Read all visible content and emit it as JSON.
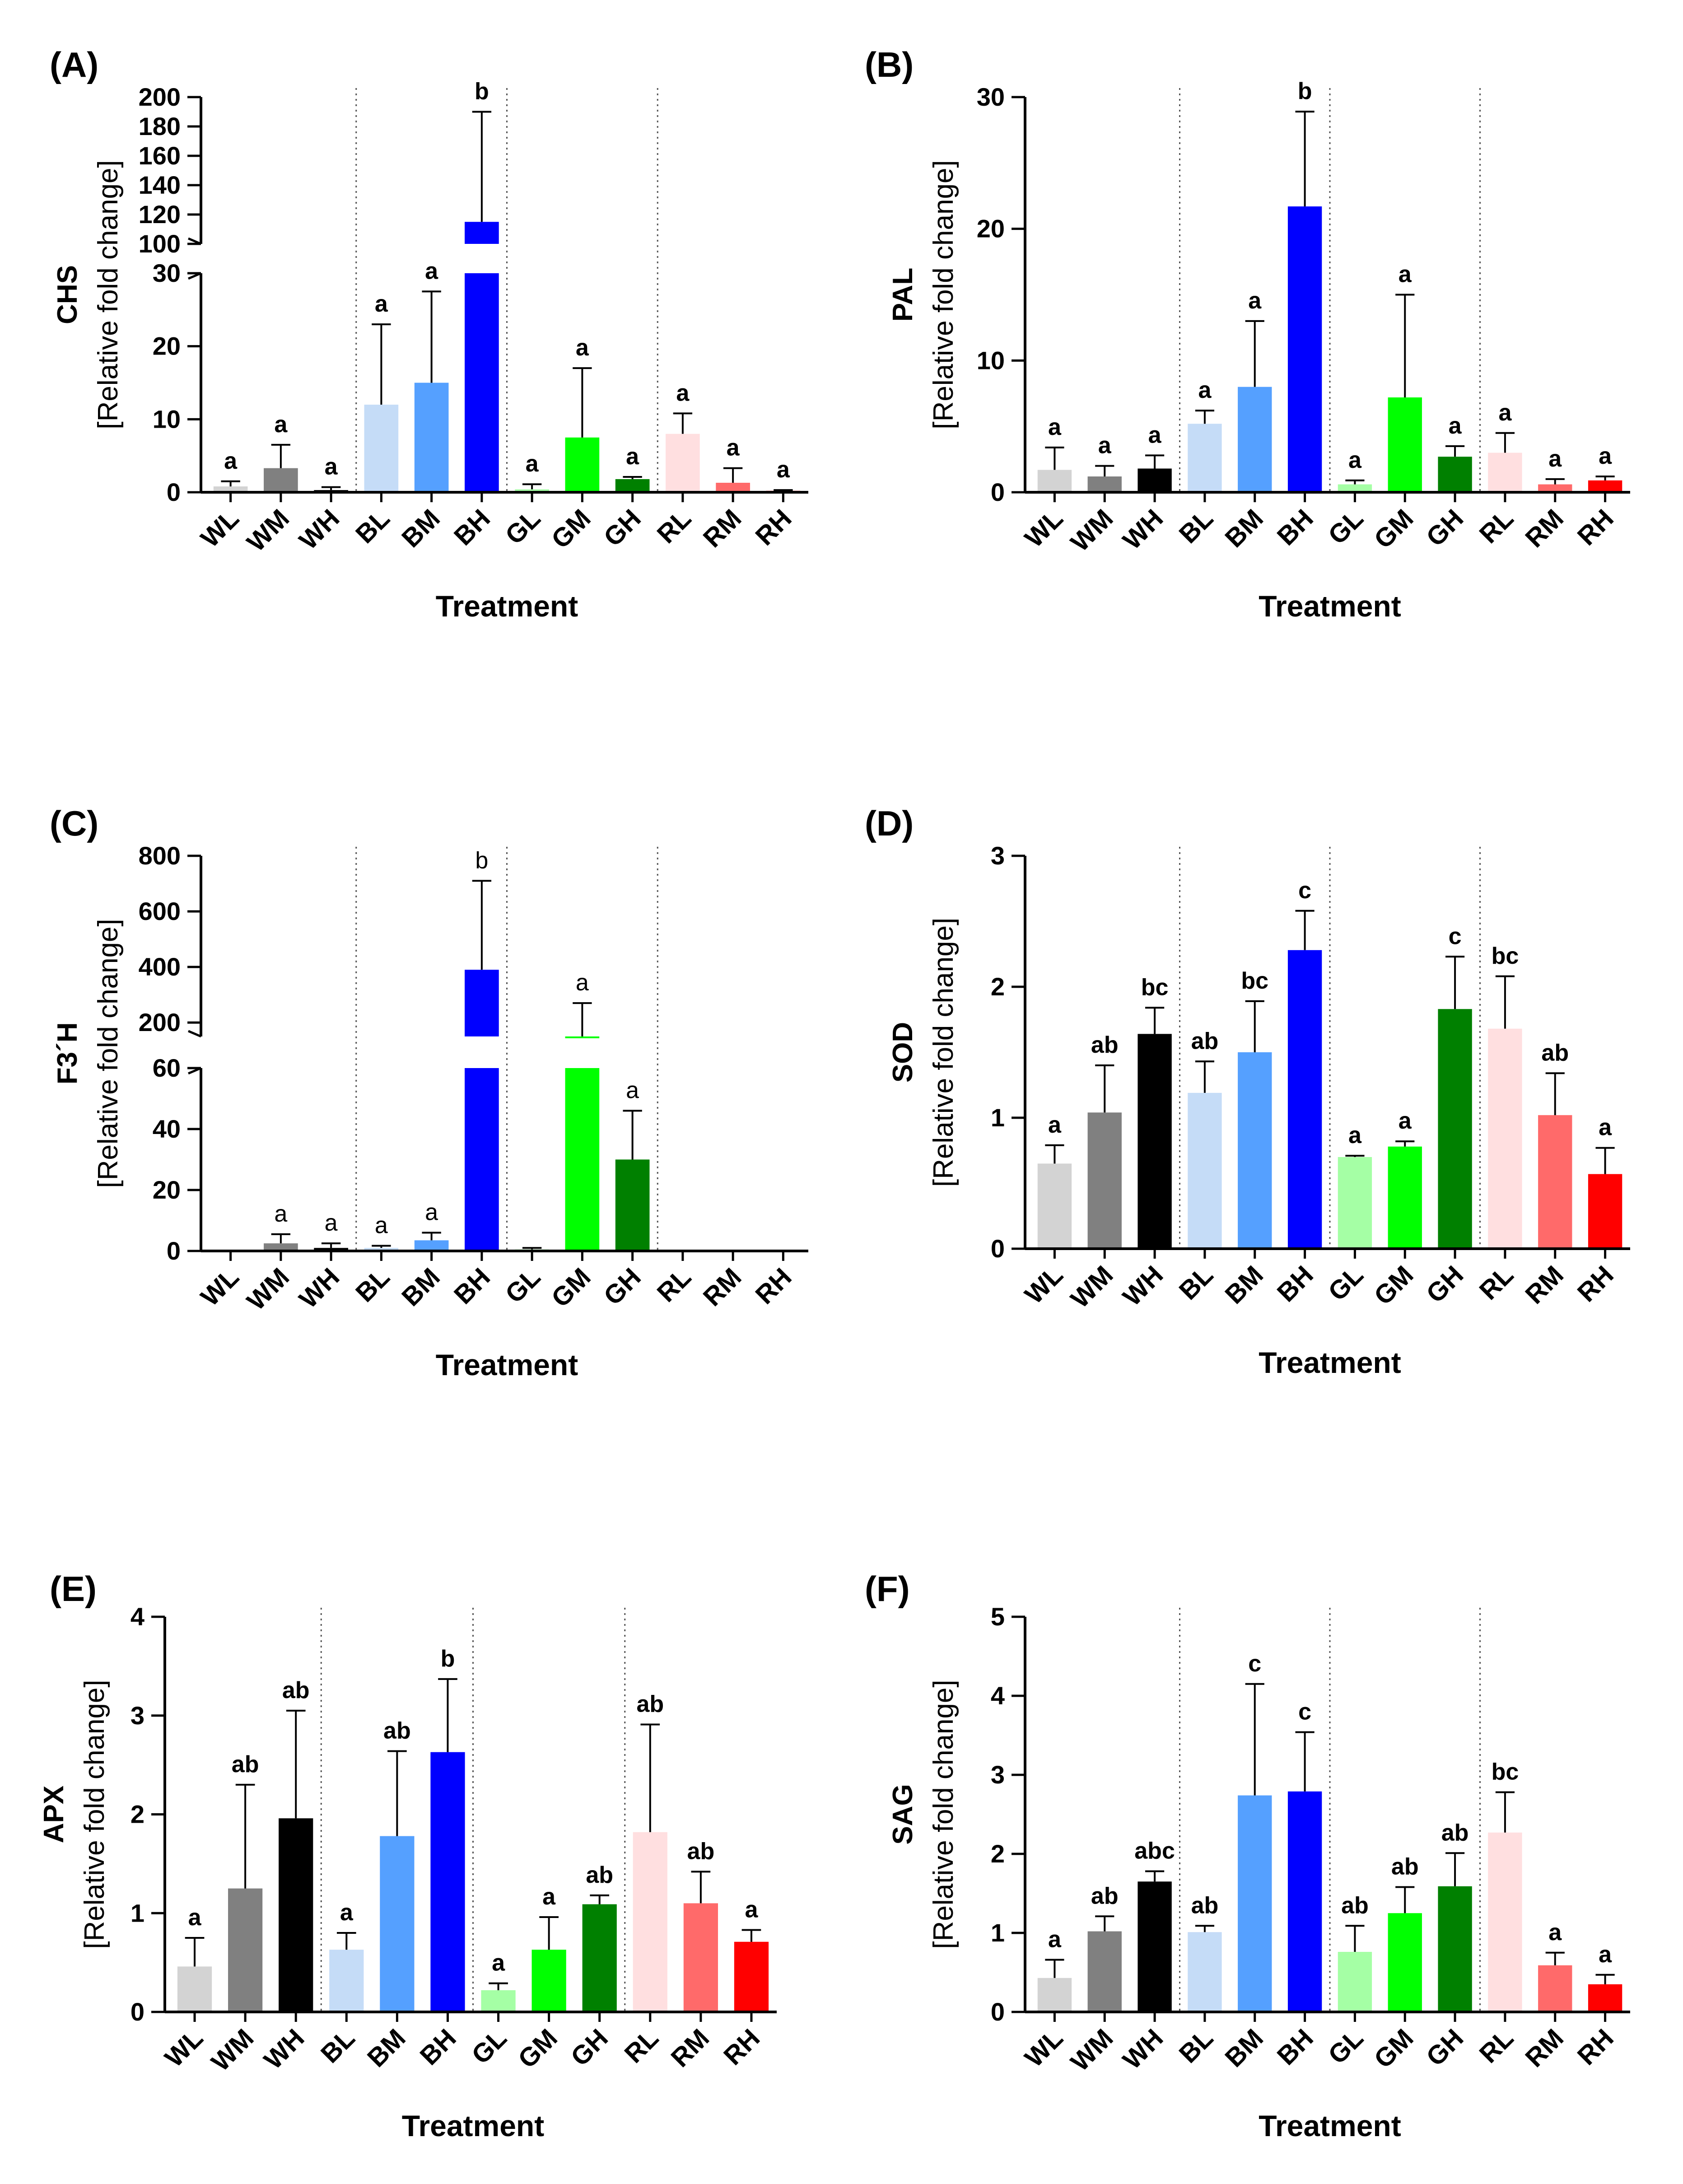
{
  "chart_data": [
    {
      "panel": "(A)",
      "type": "bar",
      "gene": "CHS",
      "unit": "[Relative fold change]",
      "xlabel": "Treatment",
      "categories": [
        "WL",
        "WM",
        "WH",
        "BL",
        "BM",
        "BH",
        "GL",
        "GM",
        "GH",
        "RL",
        "RM",
        "RH"
      ],
      "colors": [
        "#d3d3d3",
        "#808080",
        "#000000",
        "#c5dcf7",
        "#55a0ff",
        "#0000ff",
        "#a5ffa5",
        "#00ff00",
        "#008000",
        "#ffdfe0",
        "#ff6a6a",
        "#ff0000"
      ],
      "values": [
        0.8,
        3.3,
        0.3,
        12,
        15,
        115,
        0.4,
        7.5,
        1.8,
        8,
        1.3,
        0.2
      ],
      "errors": [
        0.7,
        3.2,
        0.4,
        11,
        12.5,
        75,
        0.7,
        9.5,
        0.3,
        2.8,
        2,
        0.1
      ],
      "letters": [
        "a",
        "a",
        "a",
        "a",
        "a",
        "b",
        "a",
        "a",
        "a",
        "a",
        "a",
        "a"
      ],
      "broken_axis": {
        "lower": [
          0,
          30
        ],
        "upper": [
          100,
          200
        ]
      },
      "yticks_lower": [
        0,
        10,
        20,
        30
      ],
      "yticks_upper": [
        100,
        120,
        140,
        160,
        180,
        200
      ],
      "separators_after": [
        "WH",
        "BH",
        "GH"
      ]
    },
    {
      "panel": "(B)",
      "type": "bar",
      "gene": "PAL",
      "unit": "[Relative fold change]",
      "xlabel": "Treatment",
      "categories": [
        "WL",
        "WM",
        "WH",
        "BL",
        "BM",
        "BH",
        "GL",
        "GM",
        "GH",
        "RL",
        "RM",
        "RH"
      ],
      "colors": [
        "#d3d3d3",
        "#808080",
        "#000000",
        "#c5dcf7",
        "#55a0ff",
        "#0000ff",
        "#a5ffa5",
        "#00ff00",
        "#008000",
        "#ffdfe0",
        "#ff6a6a",
        "#ff0000"
      ],
      "values": [
        1.7,
        1.2,
        1.8,
        5.2,
        8,
        21.7,
        0.6,
        7.2,
        2.7,
        3,
        0.6,
        0.9
      ],
      "errors": [
        1.7,
        0.8,
        1,
        1,
        5,
        7.2,
        0.3,
        7.8,
        0.8,
        1.5,
        0.4,
        0.3
      ],
      "letters": [
        "a",
        "a",
        "a",
        "a",
        "a",
        "b",
        "a",
        "a",
        "a",
        "a",
        "a",
        "a"
      ],
      "ylim": [
        0,
        30
      ],
      "yticks": [
        0,
        10,
        20,
        30
      ],
      "separators_after": [
        "WH",
        "BH",
        "GH"
      ]
    },
    {
      "panel": "(C)",
      "type": "bar",
      "gene": "F3´H",
      "unit": "[Relative fold change]",
      "xlabel": "Treatment",
      "categories": [
        "WL",
        "WM",
        "WH",
        "BL",
        "BM",
        "BH",
        "GL",
        "GM",
        "GH",
        "RL",
        "RM",
        "RH"
      ],
      "colors": [
        "#d3d3d3",
        "#808080",
        "#000000",
        "#c5dcf7",
        "#55a0ff",
        "#0000ff",
        "#a5ffa5",
        "#00ff00",
        "#008000",
        "#ffdfe0",
        "#ff6a6a",
        "#ff0000"
      ],
      "values": [
        0,
        2.5,
        1,
        1,
        3.5,
        390,
        0.5,
        150,
        30,
        0,
        0,
        0
      ],
      "errors": [
        0,
        3,
        1.5,
        0.7,
        2.5,
        320,
        0.5,
        120,
        16,
        0,
        0,
        0
      ],
      "letters": [
        "",
        "a",
        "a",
        "a",
        "a",
        "b",
        "",
        "a",
        "a",
        "",
        "",
        ""
      ],
      "broken_axis": {
        "lower": [
          0,
          60
        ],
        "upper": [
          150,
          800
        ]
      },
      "yticks_lower": [
        0,
        20,
        40,
        60
      ],
      "yticks_upper": [
        200,
        400,
        600,
        800
      ],
      "separators_after": [
        "WH",
        "BH",
        "GH"
      ]
    },
    {
      "panel": "(D)",
      "type": "bar",
      "gene": "SOD",
      "unit": "[Relative fold change]",
      "xlabel": "Treatment",
      "categories": [
        "WL",
        "WM",
        "WH",
        "BL",
        "BM",
        "BH",
        "GL",
        "GM",
        "GH",
        "RL",
        "RM",
        "RH"
      ],
      "colors": [
        "#d3d3d3",
        "#808080",
        "#000000",
        "#c5dcf7",
        "#55a0ff",
        "#0000ff",
        "#a5ffa5",
        "#00ff00",
        "#008000",
        "#ffdfe0",
        "#ff6a6a",
        "#ff0000"
      ],
      "values": [
        0.65,
        1.04,
        1.64,
        1.19,
        1.5,
        2.28,
        0.7,
        0.78,
        1.83,
        1.68,
        1.02,
        0.57
      ],
      "errors": [
        0.14,
        0.36,
        0.2,
        0.24,
        0.39,
        0.3,
        0.01,
        0.04,
        0.4,
        0.4,
        0.32,
        0.2
      ],
      "letters": [
        "a",
        "ab",
        "bc",
        "ab",
        "bc",
        "c",
        "a",
        "a",
        "c",
        "bc",
        "ab",
        "a"
      ],
      "ylim": [
        0,
        3
      ],
      "yticks": [
        0,
        1,
        2,
        3
      ],
      "separators_after": [
        "WH",
        "BH",
        "GH"
      ]
    },
    {
      "panel": "(E)",
      "type": "bar",
      "gene": "APX",
      "unit": "[Relative fold change]",
      "xlabel": "Treatment",
      "categories": [
        "WL",
        "WM",
        "WH",
        "BL",
        "BM",
        "BH",
        "GL",
        "GM",
        "GH",
        "RL",
        "RM",
        "RH"
      ],
      "colors": [
        "#d3d3d3",
        "#808080",
        "#000000",
        "#c5dcf7",
        "#55a0ff",
        "#0000ff",
        "#a5ffa5",
        "#00ff00",
        "#008000",
        "#ffdfe0",
        "#ff6a6a",
        "#ff0000"
      ],
      "values": [
        0.46,
        1.25,
        1.96,
        0.63,
        1.78,
        2.63,
        0.22,
        0.63,
        1.09,
        1.82,
        1.1,
        0.71
      ],
      "errors": [
        0.29,
        1.05,
        1.09,
        0.17,
        0.86,
        0.74,
        0.07,
        0.33,
        0.09,
        1.09,
        0.32,
        0.12
      ],
      "letters": [
        "a",
        "ab",
        "ab",
        "a",
        "ab",
        "b",
        "a",
        "a",
        "ab",
        "ab",
        "ab",
        "a"
      ],
      "ylim": [
        0,
        4
      ],
      "yticks": [
        0,
        1,
        2,
        3,
        4
      ],
      "separators_after": [
        "WH",
        "BH",
        "GH"
      ]
    },
    {
      "panel": "(F)",
      "type": "bar",
      "gene": "SAG",
      "unit": "[Relative fold change]",
      "xlabel": "Treatment",
      "categories": [
        "WL",
        "WM",
        "WH",
        "BL",
        "BM",
        "BH",
        "GL",
        "GM",
        "GH",
        "RL",
        "RM",
        "RH"
      ],
      "colors": [
        "#d3d3d3",
        "#808080",
        "#000000",
        "#c5dcf7",
        "#55a0ff",
        "#0000ff",
        "#a5ffa5",
        "#00ff00",
        "#008000",
        "#ffdfe0",
        "#ff6a6a",
        "#ff0000"
      ],
      "values": [
        0.43,
        1.02,
        1.65,
        1.01,
        2.74,
        2.79,
        0.76,
        1.25,
        1.59,
        2.27,
        0.59,
        0.35
      ],
      "errors": [
        0.23,
        0.19,
        0.13,
        0.08,
        1.41,
        0.75,
        0.33,
        0.33,
        0.42,
        0.51,
        0.16,
        0.12
      ],
      "letters": [
        "a",
        "ab",
        "abc",
        "ab",
        "c",
        "c",
        "ab",
        "ab",
        "ab",
        "bc",
        "a",
        "a"
      ],
      "ylim": [
        0,
        5
      ],
      "yticks": [
        0,
        1,
        2,
        3,
        4,
        5
      ],
      "separators_after": [
        "WH",
        "BH",
        "GH"
      ]
    }
  ]
}
